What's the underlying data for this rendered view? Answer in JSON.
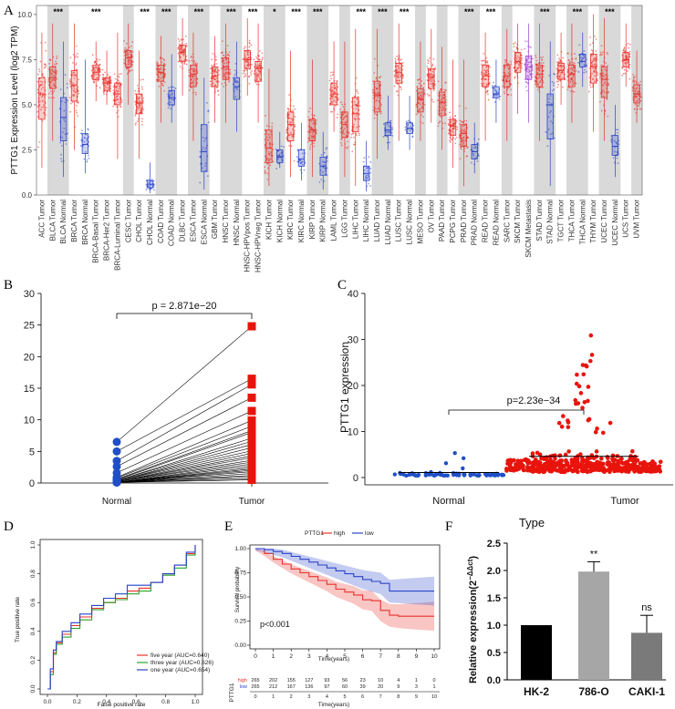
{
  "panel_labels": [
    "A",
    "B",
    "C",
    "D",
    "E",
    "F"
  ],
  "colors": {
    "tumor": "#e8322c",
    "normal": "#2a44c9",
    "metastasis": "#a040d0",
    "shade": "#d9d9d9",
    "roc_five": "#e8322c",
    "roc_three": "#2aa32a",
    "roc_one": "#2a44c9",
    "bar": "#000000",
    "bar_786": "#a6a6a6",
    "bar_caki": "#7a7a7a"
  },
  "chart_data": [
    {
      "panel": "A",
      "type": "box",
      "ylabel": "PTTG1 Expression Level (log2 TPM)",
      "ylim": [
        0,
        10.5
      ],
      "yticks": [
        "0.0",
        "2.5",
        "5.0",
        "7.5",
        "10.0"
      ],
      "categories": [
        "ACC.Tumor",
        "BLCA.Tumor",
        "BLCA.Normal",
        "BRCA.Tumor",
        "BRCA.Normal",
        "BRCA-Basal.Tumor",
        "BRCA-Her2.Tumor",
        "BRCA-Luminal.Tumor",
        "CESC.Tumor",
        "CHOL.Tumor",
        "CHOL.Normal",
        "COAD.Tumor",
        "COAD.Normal",
        "DLBC.Tumor",
        "ESCA.Tumor",
        "ESCA.Normal",
        "GBM.Tumor",
        "HNSC.Tumor",
        "HNSC.Normal",
        "HNSC-HPVpos.Tumor",
        "HNSC-HPVneg.Tumor",
        "KICH.Tumor",
        "KICH.Normal",
        "KIRC.Tumor",
        "KIRC.Normal",
        "KIRP.Tumor",
        "KIRP.Normal",
        "LAML.Tumor",
        "LGG.Tumor",
        "LIHC.Tumor",
        "LIHC.Normal",
        "LUAD.Tumor",
        "LUAD.Normal",
        "LUSC.Tumor",
        "LUSC.Normal",
        "MESO.Tumor",
        "OV.Tumor",
        "PAAD.Tumor",
        "PCPG.Tumor",
        "PRAD.Tumor",
        "PRAD.Normal",
        "READ.Tumor",
        "READ.Normal",
        "SARC.Tumor",
        "SKCM.Tumor",
        "SKCM.Metastasis",
        "STAD.Tumor",
        "STAD.Normal",
        "TGCT.Tumor",
        "THCA.Tumor",
        "THCA.Normal",
        "THYM.Tumor",
        "UCEC.Tumor",
        "UCEC.Normal",
        "UCS.Tumor",
        "UVM.Tumor"
      ],
      "medians": [
        5.6,
        6.5,
        4.3,
        6.1,
        2.8,
        6.8,
        6.2,
        5.6,
        7.6,
        5.1,
        0.6,
        6.8,
        5.4,
        7.9,
        6.7,
        2.4,
        6.6,
        7.1,
        6.0,
        7.5,
        7.0,
        2.6,
        2.1,
        3.9,
        2.0,
        3.6,
        1.6,
        5.6,
        3.9,
        4.5,
        1.2,
        5.5,
        3.6,
        6.8,
        3.7,
        5.3,
        6.5,
        5.1,
        3.8,
        3.4,
        2.4,
        6.6,
        5.6,
        6.6,
        7.4,
        7.1,
        6.7,
        5.0,
        6.9,
        6.7,
        7.4,
        7.1,
        6.4,
        2.7,
        7.5,
        5.6
      ],
      "q1": [
        4.2,
        5.9,
        3.0,
        5.2,
        2.3,
        6.4,
        5.8,
        5.0,
        7.1,
        4.5,
        0.4,
        6.3,
        5.0,
        7.4,
        6.0,
        1.3,
        6.0,
        6.4,
        5.3,
        7.0,
        6.3,
        1.8,
        1.8,
        3.0,
        1.6,
        3.0,
        1.1,
        5.0,
        3.2,
        3.5,
        0.8,
        4.6,
        3.3,
        6.2,
        3.4,
        4.6,
        5.9,
        4.4,
        3.3,
        2.7,
        2.0,
        6.0,
        5.4,
        6.0,
        6.8,
        6.4,
        6.0,
        3.1,
        6.4,
        6.0,
        7.1,
        6.2,
        5.4,
        2.2,
        7.1,
        5.1
      ],
      "q3": [
        6.5,
        7.1,
        5.4,
        6.9,
        3.4,
        7.2,
        6.5,
        6.2,
        8.0,
        5.6,
        0.8,
        7.2,
        5.8,
        8.3,
        7.2,
        3.9,
        7.1,
        7.6,
        6.5,
        8.0,
        7.4,
        3.6,
        2.5,
        4.6,
        2.5,
        4.2,
        2.1,
        6.2,
        4.6,
        5.4,
        1.6,
        6.3,
        4.0,
        7.3,
        4.0,
        5.9,
        7.0,
        5.7,
        4.2,
        3.9,
        2.8,
        7.2,
        6.0,
        7.2,
        7.9,
        7.7,
        7.2,
        5.6,
        7.3,
        7.2,
        7.8,
        7.8,
        7.1,
        3.3,
        7.9,
        6.1
      ],
      "wmin": [
        1.5,
        3.0,
        1.0,
        2.5,
        1.2,
        5.2,
        5.0,
        2.0,
        5.0,
        2.0,
        0.1,
        4.0,
        4.0,
        5.5,
        3.0,
        0.3,
        4.0,
        4.0,
        3.5,
        5.5,
        4.0,
        0.5,
        1.5,
        1.0,
        0.8,
        1.0,
        0.3,
        3.5,
        1.0,
        0.5,
        0.2,
        2.0,
        2.5,
        3.0,
        2.5,
        3.0,
        4.0,
        2.5,
        1.5,
        0.5,
        1.2,
        3.0,
        4.0,
        3.0,
        4.5,
        4.0,
        3.0,
        0.5,
        5.0,
        4.0,
        6.0,
        3.5,
        3.0,
        1.0,
        6.0,
        4.0
      ],
      "wmax": [
        9.0,
        9.5,
        8.5,
        9.5,
        7.5,
        8.5,
        8.0,
        9.0,
        9.5,
        8.0,
        1.8,
        8.8,
        7.8,
        9.8,
        9.0,
        6.5,
        8.8,
        9.5,
        8.5,
        9.8,
        9.5,
        7.0,
        3.5,
        8.0,
        4.0,
        7.5,
        3.5,
        8.5,
        8.5,
        9.2,
        3.0,
        9.2,
        5.5,
        9.5,
        5.5,
        8.5,
        9.2,
        8.2,
        7.5,
        7.5,
        4.0,
        9.0,
        7.5,
        9.2,
        9.5,
        9.5,
        9.5,
        8.5,
        9.0,
        9.5,
        9.0,
        10.0,
        9.8,
        5.0,
        9.5,
        8.0
      ],
      "significance": [
        {
          "group": "BLCA",
          "label": "***"
        },
        {
          "group": "BRCA",
          "label": "***"
        },
        {
          "group": "CHOL",
          "label": "***"
        },
        {
          "group": "COAD",
          "label": "***"
        },
        {
          "group": "ESCA",
          "label": "***"
        },
        {
          "group": "HNSC",
          "label": "***"
        },
        {
          "group": "HNSC-HPV",
          "label": "***"
        },
        {
          "group": "KICH",
          "label": "*"
        },
        {
          "group": "KIRC",
          "label": "***"
        },
        {
          "group": "KIRP",
          "label": "***"
        },
        {
          "group": "LIHC",
          "label": "***"
        },
        {
          "group": "LUAD",
          "label": "***"
        },
        {
          "group": "LUSC",
          "label": "***"
        },
        {
          "group": "PRAD",
          "label": "***"
        },
        {
          "group": "READ",
          "label": "***"
        },
        {
          "group": "STAD",
          "label": "***"
        },
        {
          "group": "THCA",
          "label": "***"
        },
        {
          "group": "UCEC",
          "label": "***"
        }
      ]
    },
    {
      "panel": "B",
      "type": "paired-scatter",
      "categories": [
        "Normal",
        "Tumor"
      ],
      "p_value_label": "p = 2.871e−20",
      "ylim": [
        0,
        30
      ],
      "yticks": [
        "0",
        "5",
        "10",
        "15",
        "20",
        "25",
        "30"
      ],
      "pairs": [
        [
          6.5,
          24.8
        ],
        [
          5.0,
          16.5
        ],
        [
          3.5,
          15.6
        ],
        [
          2.6,
          13.5
        ],
        [
          1.6,
          11.4
        ],
        [
          0.9,
          9.9
        ],
        [
          0.8,
          9.0
        ],
        [
          0.6,
          8.3
        ],
        [
          0.5,
          8.0
        ],
        [
          0.4,
          7.1
        ],
        [
          0.4,
          6.6
        ],
        [
          0.3,
          6.1
        ],
        [
          0.3,
          5.6
        ],
        [
          0.3,
          5.1
        ],
        [
          0.2,
          4.7
        ],
        [
          0.2,
          4.3
        ],
        [
          0.2,
          4.0
        ],
        [
          0.2,
          3.6
        ],
        [
          0.2,
          3.3
        ],
        [
          0.1,
          3.0
        ],
        [
          0.1,
          2.7
        ],
        [
          0.1,
          2.4
        ],
        [
          0.1,
          2.2
        ],
        [
          0.1,
          2.0
        ],
        [
          0.1,
          1.8
        ],
        [
          0.1,
          1.5
        ],
        [
          0.1,
          1.2
        ],
        [
          0.1,
          1.0
        ],
        [
          0.1,
          0.7
        ],
        [
          0.1,
          0.5
        ]
      ]
    },
    {
      "panel": "C",
      "type": "beeswarm",
      "categories": [
        "Normal",
        "Tumor"
      ],
      "ylabel": "PTTG1 expression",
      "p_value_label": "p=2.23e−34",
      "ylim": [
        0,
        40
      ],
      "yticks": [
        "0",
        "10",
        "20",
        "30",
        "40"
      ],
      "normal_mean": 1.1,
      "tumor_mean": 4.6
    },
    {
      "panel": "D",
      "type": "line",
      "xlabel": "False positive rate",
      "ylabel": "True positive rate",
      "xticks": [
        "0.0",
        "0.2",
        "0.4",
        "0.6",
        "0.8",
        "1.0"
      ],
      "yticks": [
        "0.0",
        "0.2",
        "0.4",
        "0.6",
        "0.8",
        "1.0"
      ],
      "series": [
        {
          "name": "five year (AUC=0.640)",
          "color": "#e8322c",
          "x": [
            0,
            0.02,
            0.04,
            0.06,
            0.1,
            0.16,
            0.22,
            0.3,
            0.38,
            0.46,
            0.54,
            0.62,
            0.7,
            0.78,
            0.86,
            0.94,
            1
          ],
          "y": [
            0,
            0.12,
            0.25,
            0.32,
            0.38,
            0.44,
            0.5,
            0.56,
            0.6,
            0.63,
            0.68,
            0.7,
            0.74,
            0.8,
            0.86,
            0.94,
            1
          ]
        },
        {
          "name": "three year (AUC=0.626)",
          "color": "#2aa32a",
          "x": [
            0,
            0.02,
            0.04,
            0.06,
            0.1,
            0.16,
            0.22,
            0.3,
            0.38,
            0.46,
            0.54,
            0.62,
            0.7,
            0.78,
            0.86,
            0.94,
            1
          ],
          "y": [
            0,
            0.1,
            0.24,
            0.31,
            0.36,
            0.42,
            0.48,
            0.55,
            0.6,
            0.62,
            0.66,
            0.68,
            0.74,
            0.79,
            0.84,
            0.93,
            1
          ]
        },
        {
          "name": "one year (AUC=0.654)",
          "color": "#2a44c9",
          "x": [
            0,
            0.02,
            0.04,
            0.06,
            0.1,
            0.16,
            0.22,
            0.3,
            0.38,
            0.46,
            0.54,
            0.62,
            0.7,
            0.78,
            0.86,
            0.94,
            1
          ],
          "y": [
            0,
            0.14,
            0.27,
            0.33,
            0.4,
            0.46,
            0.52,
            0.58,
            0.63,
            0.66,
            0.72,
            0.72,
            0.74,
            0.8,
            0.86,
            0.95,
            1
          ]
        }
      ]
    },
    {
      "panel": "E",
      "type": "line",
      "legend_title": "PTTG1",
      "legend": [
        "high",
        "low"
      ],
      "xlabel": "Time(years)",
      "ylabel": "Survival probability",
      "annotation": "p<0.001",
      "xticks": [
        "0",
        "1",
        "2",
        "3",
        "4",
        "5",
        "6",
        "7",
        "8",
        "9",
        "10"
      ],
      "yticks": [
        "0.00",
        "0.25",
        "0.50",
        "0.75",
        "1.00"
      ],
      "series": [
        {
          "name": "high",
          "color": "#e8322c",
          "x": [
            0,
            0.5,
            1,
            1.5,
            2,
            2.5,
            3,
            3.5,
            4,
            4.5,
            5,
            5.5,
            6,
            6.5,
            7,
            7.5,
            8,
            9,
            10
          ],
          "y": [
            1,
            0.95,
            0.89,
            0.84,
            0.79,
            0.75,
            0.71,
            0.67,
            0.63,
            0.58,
            0.55,
            0.52,
            0.47,
            0.46,
            0.36,
            0.31,
            0.3,
            0.3,
            0.3
          ]
        },
        {
          "name": "low",
          "color": "#2a44c9",
          "x": [
            0,
            0.5,
            1,
            1.5,
            2,
            2.5,
            3,
            3.5,
            4,
            4.5,
            5,
            5.5,
            6,
            6.5,
            7,
            7.5,
            8,
            9,
            10
          ],
          "y": [
            1,
            0.99,
            0.97,
            0.95,
            0.92,
            0.89,
            0.86,
            0.83,
            0.8,
            0.77,
            0.74,
            0.71,
            0.68,
            0.66,
            0.64,
            0.56,
            0.56,
            0.56,
            0.56
          ]
        }
      ],
      "risk_table": {
        "title": "PTTG1",
        "rows": [
          {
            "label": "high",
            "values": [
              "265",
              "202",
              "155",
              "127",
              "93",
              "56",
              "23",
              "10",
              "4",
              "1",
              "0"
            ]
          },
          {
            "label": "low",
            "values": [
              "265",
              "212",
              "167",
              "136",
              "97",
              "60",
              "39",
              "20",
              "9",
              "3",
              "1"
            ]
          }
        ],
        "xlabel": "Time(years)"
      }
    },
    {
      "panel": "F",
      "type": "bar",
      "title": "Type",
      "ylabel": "Relative expression(2⁻ᵃᵃᶜᵗ)",
      "ylabel_display": "Relative expression(2",
      "ylabel_sup": "−ΔΔct",
      "ylim": [
        0,
        2.5
      ],
      "yticks": [
        "0.0",
        "0.5",
        "1.0",
        "1.5",
        "2.0",
        "2.5"
      ],
      "categories": [
        "HK-2",
        "786-O",
        "CAKI-1"
      ],
      "values": [
        1.0,
        1.98,
        0.86
      ],
      "errors": [
        0,
        0.18,
        0.32
      ],
      "significance": [
        "",
        "**",
        "ns"
      ]
    }
  ]
}
